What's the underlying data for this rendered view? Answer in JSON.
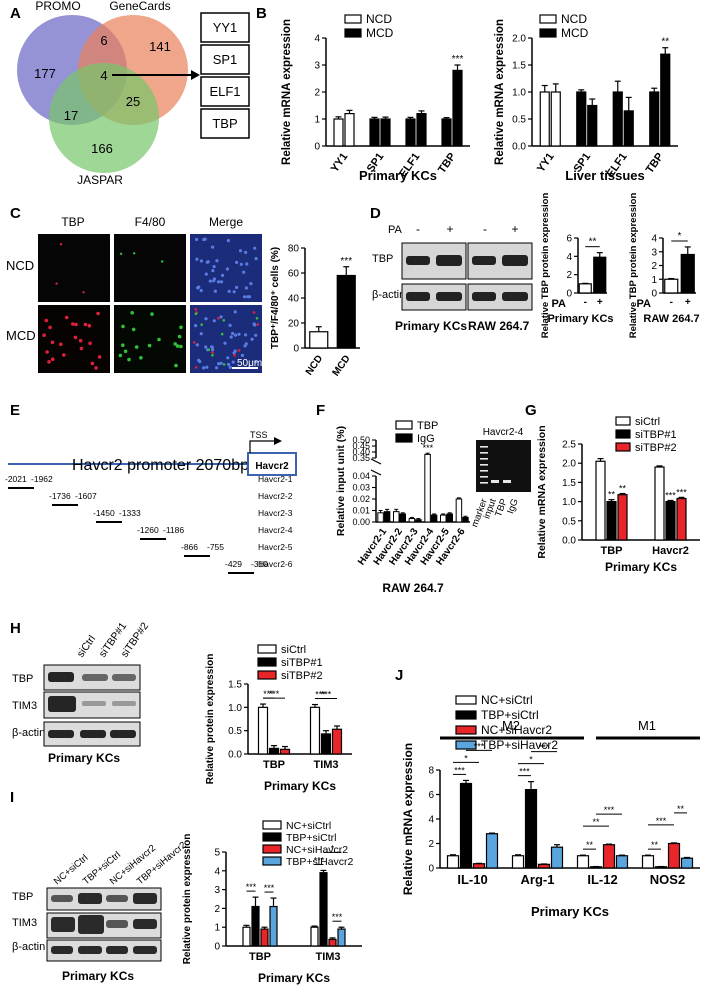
{
  "panels": {
    "A": "A",
    "B": "B",
    "C": "C",
    "D": "D",
    "E": "E",
    "F": "F",
    "G": "G",
    "H": "H",
    "I": "I",
    "J": "J"
  },
  "panelA": {
    "sets": [
      "PROMO",
      "GeneCards",
      "JASPAR"
    ],
    "counts": {
      "promo_only": "177",
      "promo_gc": "6",
      "gc_only": "141",
      "all": "4",
      "promo_jaspar": "17",
      "gc_jaspar": "25",
      "jaspar_only": "166"
    },
    "genes": [
      "YY1",
      "SP1",
      "ELF1",
      "TBP"
    ]
  },
  "panelC": {
    "col_headers": [
      "TBP",
      "F4/80",
      "Merge"
    ],
    "row_labels": [
      "NCD",
      "MCD"
    ],
    "scale": "50μm",
    "colors": {
      "tbp": "#e0203a",
      "f480": "#2fbf3a",
      "merge_bg": "#1b2c7a"
    }
  },
  "panelD": {
    "pa": "PA",
    "signs": [
      "-",
      "+",
      "-",
      "+"
    ],
    "blots": [
      "TBP",
      "β-actin"
    ],
    "cells": [
      "Primary KCs",
      "RAW 264.7"
    ]
  },
  "panelE": {
    "title": "Havcr2 promoter 2070bp",
    "tss": "TSS",
    "box": "Havcr2",
    "fragments": [
      {
        "name": "Havcr2-1",
        "a": "-2021",
        "b": "-1962"
      },
      {
        "name": "Havcr2-2",
        "a": "-1736",
        "b": "-1607"
      },
      {
        "name": "Havcr2-3",
        "a": "-1450",
        "b": "-1333"
      },
      {
        "name": "Havcr2-4",
        "a": "-1260",
        "b": "-1186"
      },
      {
        "name": "Havcr2-5",
        "a": "-866",
        "b": "-755"
      },
      {
        "name": "Havcr2-6",
        "a": "-429",
        "b": "-310"
      }
    ]
  },
  "panelF_gel": {
    "title": "Havcr2-4",
    "lanes": [
      "marker",
      "input",
      "TBP",
      "IgG"
    ]
  },
  "panelH_blot": {
    "lanes": [
      "siCtrl",
      "siTBP#1",
      "siTBP#2"
    ],
    "rows": [
      "TBP",
      "TIM3",
      "β-actin"
    ],
    "caption": "Primary KCs"
  },
  "panelI_blot": {
    "lanes": [
      "NC+siCtrl",
      "TBP+siCtrl",
      "NC+siHavcr2",
      "TBP+siHavcr2"
    ],
    "rows": [
      "TBP",
      "TIM3",
      "β-actin"
    ],
    "caption": "Primary KCs"
  },
  "panelJ": {
    "group_labels": [
      "M2",
      "M1"
    ]
  },
  "colors": {
    "black": "#000000",
    "white": "#ffffff",
    "red": "#e8262a",
    "blue": "#5aa5dd"
  },
  "chart_data": [
    {
      "id": "B1",
      "type": "bar",
      "categories": [
        "YY1",
        "SP1",
        "ELF1",
        "TBP"
      ],
      "series": [
        {
          "name": "NCD",
          "values": [
            1.0,
            1.0,
            1.0,
            1.0
          ],
          "err": [
            0.08,
            0.06,
            0.06,
            0.05
          ]
        },
        {
          "name": "MCD",
          "values": [
            1.2,
            1.0,
            1.2,
            2.8
          ],
          "err": [
            0.12,
            0.07,
            0.1,
            0.2
          ]
        }
      ],
      "ylabel": "Relative mRNA expression",
      "xlabel": "Primary KCs",
      "ylim": [
        0,
        4
      ],
      "yticks": [
        0,
        1,
        2,
        3,
        4
      ],
      "sig": [
        {
          "cat": 3,
          "text": "***"
        }
      ]
    },
    {
      "id": "B2",
      "type": "bar",
      "categories": [
        "YY1",
        "SP1",
        "ELF1",
        "TBP"
      ],
      "series": [
        {
          "name": "NCD",
          "values": [
            1.0,
            1.0,
            1.0,
            1.0
          ],
          "err": [
            0.12,
            0.04,
            0.2,
            0.07
          ]
        },
        {
          "name": "MCD",
          "values": [
            1.0,
            0.75,
            0.65,
            1.7
          ],
          "err": [
            0.15,
            0.12,
            0.25,
            0.12
          ]
        }
      ],
      "ylabel": "Relative mRNA expression",
      "xlabel": "Liver tissues",
      "ylim": [
        0,
        2.0
      ],
      "yticks": [
        0.0,
        0.5,
        1.0,
        1.5,
        2.0
      ],
      "sig": [
        {
          "cat": 3,
          "text": "**"
        }
      ]
    },
    {
      "id": "C",
      "type": "bar",
      "categories": [
        "NCD",
        "MCD"
      ],
      "values": [
        13,
        58
      ],
      "err": [
        4,
        7
      ],
      "ylabel": "TBP⁺/F4/80⁺ cells (%)",
      "ylim": [
        0,
        80
      ],
      "yticks": [
        0,
        20,
        40,
        60,
        80
      ],
      "sig": [
        {
          "cat": 1,
          "text": "***"
        }
      ]
    },
    {
      "id": "D1",
      "type": "bar",
      "categories": [
        "-",
        "+"
      ],
      "values": [
        1.0,
        3.9
      ],
      "err": [
        0.05,
        0.5
      ],
      "ylabel": "Relative TBP protein expression",
      "xlabel": "Primary KCs",
      "catlabel": "PA",
      "ylim": [
        0,
        6
      ],
      "yticks": [
        0,
        2,
        4,
        6
      ],
      "sig": [
        {
          "text": "**"
        }
      ]
    },
    {
      "id": "D2",
      "type": "bar",
      "categories": [
        "-",
        "+"
      ],
      "values": [
        1.0,
        2.8
      ],
      "err": [
        0.05,
        0.55
      ],
      "ylabel": "Relative TBP protein expression",
      "xlabel": "RAW 264.7",
      "catlabel": "PA",
      "ylim": [
        0,
        4
      ],
      "yticks": [
        0,
        1,
        2,
        3,
        4
      ],
      "sig": [
        {
          "text": "*"
        }
      ]
    },
    {
      "id": "F",
      "type": "bar",
      "categories": [
        "Havcr2-1",
        "Havcr2-2",
        "Havcr2-3",
        "Havcr2-4",
        "Havcr2-5",
        "Havcr2-6"
      ],
      "series": [
        {
          "name": "TBP",
          "values": [
            0.008,
            0.009,
            0.003,
            0.38,
            0.006,
            0.02
          ],
          "err": [
            0.002,
            0.002,
            0.001,
            0.01,
            0.001,
            0.001
          ]
        },
        {
          "name": "IgG",
          "values": [
            0.009,
            0.007,
            0.002,
            0.006,
            0.007,
            0.004
          ],
          "err": [
            0.002,
            0.001,
            0.001,
            0.001,
            0.001,
            0.001
          ]
        }
      ],
      "ylabel": "Relative input unit (%)",
      "xlabel": "RAW 264.7",
      "ylim": [
        0,
        0.5
      ],
      "yticks": [
        0.0,
        0.01,
        0.02,
        0.03,
        0.04,
        0.35,
        0.4,
        0.45,
        0.5
      ],
      "axis_break": [
        0.04,
        0.35
      ],
      "sig": [
        {
          "cat": 3,
          "text": "***"
        }
      ]
    },
    {
      "id": "G",
      "type": "bar",
      "categories": [
        "TBP",
        "Havcr2"
      ],
      "series": [
        {
          "name": "siCtrl",
          "values": [
            2.05,
            1.9
          ],
          "err": [
            0.07,
            0.03
          ]
        },
        {
          "name": "siTBP#1",
          "values": [
            1.0,
            1.0
          ],
          "err": [
            0.05,
            0.03
          ]
        },
        {
          "name": "siTBP#2",
          "values": [
            1.18,
            1.08
          ],
          "err": [
            0.03,
            0.03
          ]
        }
      ],
      "ylabel": "Relative mRNA expression",
      "xlabel": "Primary KCs",
      "ylim": [
        0,
        2.5
      ],
      "yticks": [
        0.0,
        0.5,
        1.0,
        1.5,
        2.0,
        2.5
      ],
      "sig": [
        {
          "cat": 0,
          "series": 1,
          "text": "**"
        },
        {
          "cat": 0,
          "series": 2,
          "text": "**"
        },
        {
          "cat": 1,
          "series": 1,
          "text": "***"
        },
        {
          "cat": 1,
          "series": 2,
          "text": "***"
        }
      ]
    },
    {
      "id": "H",
      "type": "bar",
      "categories": [
        "TBP",
        "TIM3"
      ],
      "series": [
        {
          "name": "siCtrl",
          "values": [
            1.0,
            1.0
          ],
          "err": [
            0.07,
            0.06
          ]
        },
        {
          "name": "siTBP#1",
          "values": [
            0.12,
            0.43
          ],
          "err": [
            0.06,
            0.07
          ]
        },
        {
          "name": "siTBP#2",
          "values": [
            0.1,
            0.53
          ],
          "err": [
            0.06,
            0.07
          ]
        }
      ],
      "ylabel": "Relative protein expression",
      "xlabel": "Primary KCs",
      "ylim": [
        0,
        1.5
      ],
      "yticks": [
        0.0,
        0.5,
        1.0,
        1.5
      ],
      "sig": [
        {
          "cat": 0,
          "from": 0,
          "to": 1,
          "text": "***"
        },
        {
          "cat": 0,
          "from": 0,
          "to": 2,
          "text": "***"
        },
        {
          "cat": 1,
          "from": 0,
          "to": 1,
          "text": "***"
        },
        {
          "cat": 1,
          "from": 0,
          "to": 2,
          "text": "***"
        }
      ]
    },
    {
      "id": "I",
      "type": "bar",
      "categories": [
        "TBP",
        "TIM3"
      ],
      "series": [
        {
          "name": "NC+siCtrl",
          "values": [
            1.0,
            1.0
          ],
          "err": [
            0.1,
            0.06
          ]
        },
        {
          "name": "TBP+siCtrl",
          "values": [
            2.1,
            3.9
          ],
          "err": [
            0.5,
            0.12
          ]
        },
        {
          "name": "NC+siHavcr2",
          "values": [
            0.9,
            0.35
          ],
          "err": [
            0.1,
            0.08
          ]
        },
        {
          "name": "TBP+siHavcr2",
          "values": [
            2.1,
            0.9
          ],
          "err": [
            0.45,
            0.1
          ]
        }
      ],
      "ylabel": "Relative protein expression",
      "xlabel": "Primary KCs",
      "ylim": [
        0,
        5
      ],
      "yticks": [
        0,
        1,
        2,
        3,
        4,
        5
      ],
      "sig": [
        {
          "cat": 0,
          "from": 0,
          "to": 1,
          "text": "***"
        },
        {
          "cat": 0,
          "from": 2,
          "to": 3,
          "text": "***"
        },
        {
          "cat": 1,
          "from": 0,
          "to": 1,
          "text": "***"
        },
        {
          "cat": 1,
          "from": 2,
          "to": 3,
          "text": "***"
        },
        {
          "cat": 1,
          "from": 1,
          "to": 3,
          "text": "*",
          "level": 1
        }
      ]
    },
    {
      "id": "J",
      "type": "bar",
      "categories": [
        "IL-10",
        "Arg-1",
        "IL-12",
        "NOS2"
      ],
      "series": [
        {
          "name": "NC+siCtrl",
          "values": [
            1.0,
            1.0,
            1.0,
            1.0
          ],
          "err": [
            0.08,
            0.08,
            0.05,
            0.05
          ]
        },
        {
          "name": "TBP+siCtrl",
          "values": [
            6.9,
            6.4,
            0.1,
            0.1
          ],
          "err": [
            0.25,
            0.65,
            0.02,
            0.02
          ]
        },
        {
          "name": "NC+siHavcr2",
          "values": [
            0.35,
            0.3,
            1.9,
            2.0
          ],
          "err": [
            0.03,
            0.03,
            0.05,
            0.05
          ]
        },
        {
          "name": "TBP+siHavcr2",
          "values": [
            2.8,
            1.7,
            1.0,
            0.8
          ],
          "err": [
            0.05,
            0.2,
            0.05,
            0.06
          ]
        }
      ],
      "ylabel": "Relative mRNA expression",
      "xlabel": "Primary KCs",
      "ylim": [
        0,
        8
      ],
      "yticks": [
        0,
        2,
        4,
        6,
        8
      ],
      "sig": [
        {
          "cat": 0,
          "from": 0,
          "to": 1,
          "text": "***"
        },
        {
          "cat": 0,
          "from": 0,
          "to": 2,
          "text": "*",
          "level": 1
        },
        {
          "cat": 0,
          "from": 1,
          "to": 3,
          "text": "***",
          "level": 2
        },
        {
          "cat": 1,
          "from": 0,
          "to": 1,
          "text": "***"
        },
        {
          "cat": 1,
          "from": 0,
          "to": 2,
          "text": "*",
          "level": 1
        },
        {
          "cat": 1,
          "from": 1,
          "to": 3,
          "text": "***",
          "level": 2
        },
        {
          "cat": 2,
          "from": 0,
          "to": 1,
          "text": "**"
        },
        {
          "cat": 2,
          "from": 0,
          "to": 2,
          "text": "**",
          "level": 1
        },
        {
          "cat": 2,
          "from": 1,
          "to": 3,
          "text": "***",
          "level": 2
        },
        {
          "cat": 3,
          "from": 0,
          "to": 1,
          "text": "**"
        },
        {
          "cat": 3,
          "from": 0,
          "to": 2,
          "text": "***",
          "level": 1
        },
        {
          "cat": 3,
          "from": 2,
          "to": 3,
          "text": "**",
          "level": 2
        }
      ]
    }
  ]
}
